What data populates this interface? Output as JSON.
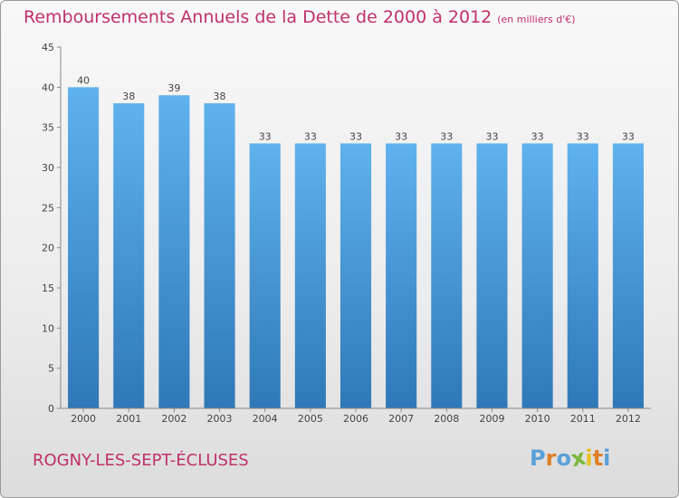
{
  "chart_data": {
    "type": "bar",
    "title": "Remboursements Annuels de la Dette de 2000 à 2012",
    "subtitle": "(en milliers d'€)",
    "categories": [
      "2000",
      "2001",
      "2002",
      "2003",
      "2004",
      "2005",
      "2006",
      "2007",
      "2008",
      "2009",
      "2010",
      "2011",
      "2012"
    ],
    "values": [
      40,
      38,
      39,
      38,
      33,
      33,
      33,
      33,
      33,
      33,
      33,
      33,
      33
    ],
    "yticks": [
      0,
      5,
      10,
      15,
      20,
      25,
      30,
      35,
      40,
      45
    ],
    "ylim": [
      0,
      45
    ],
    "xlabel": "",
    "ylabel": "",
    "grid": false,
    "bar_color": "#4d9fdc"
  },
  "footer": {
    "commune": "ROGNY-LES-SEPT-ÉCLUSES",
    "brand_letters": [
      "P",
      "r",
      "o",
      "x",
      "i",
      "t",
      "i"
    ],
    "brand_colors": [
      "#5aa0d8",
      "#e0802a",
      "#5aa0d8",
      "#78b83a",
      "#e8c020",
      "#e0802a",
      "#5aa0d8"
    ]
  }
}
